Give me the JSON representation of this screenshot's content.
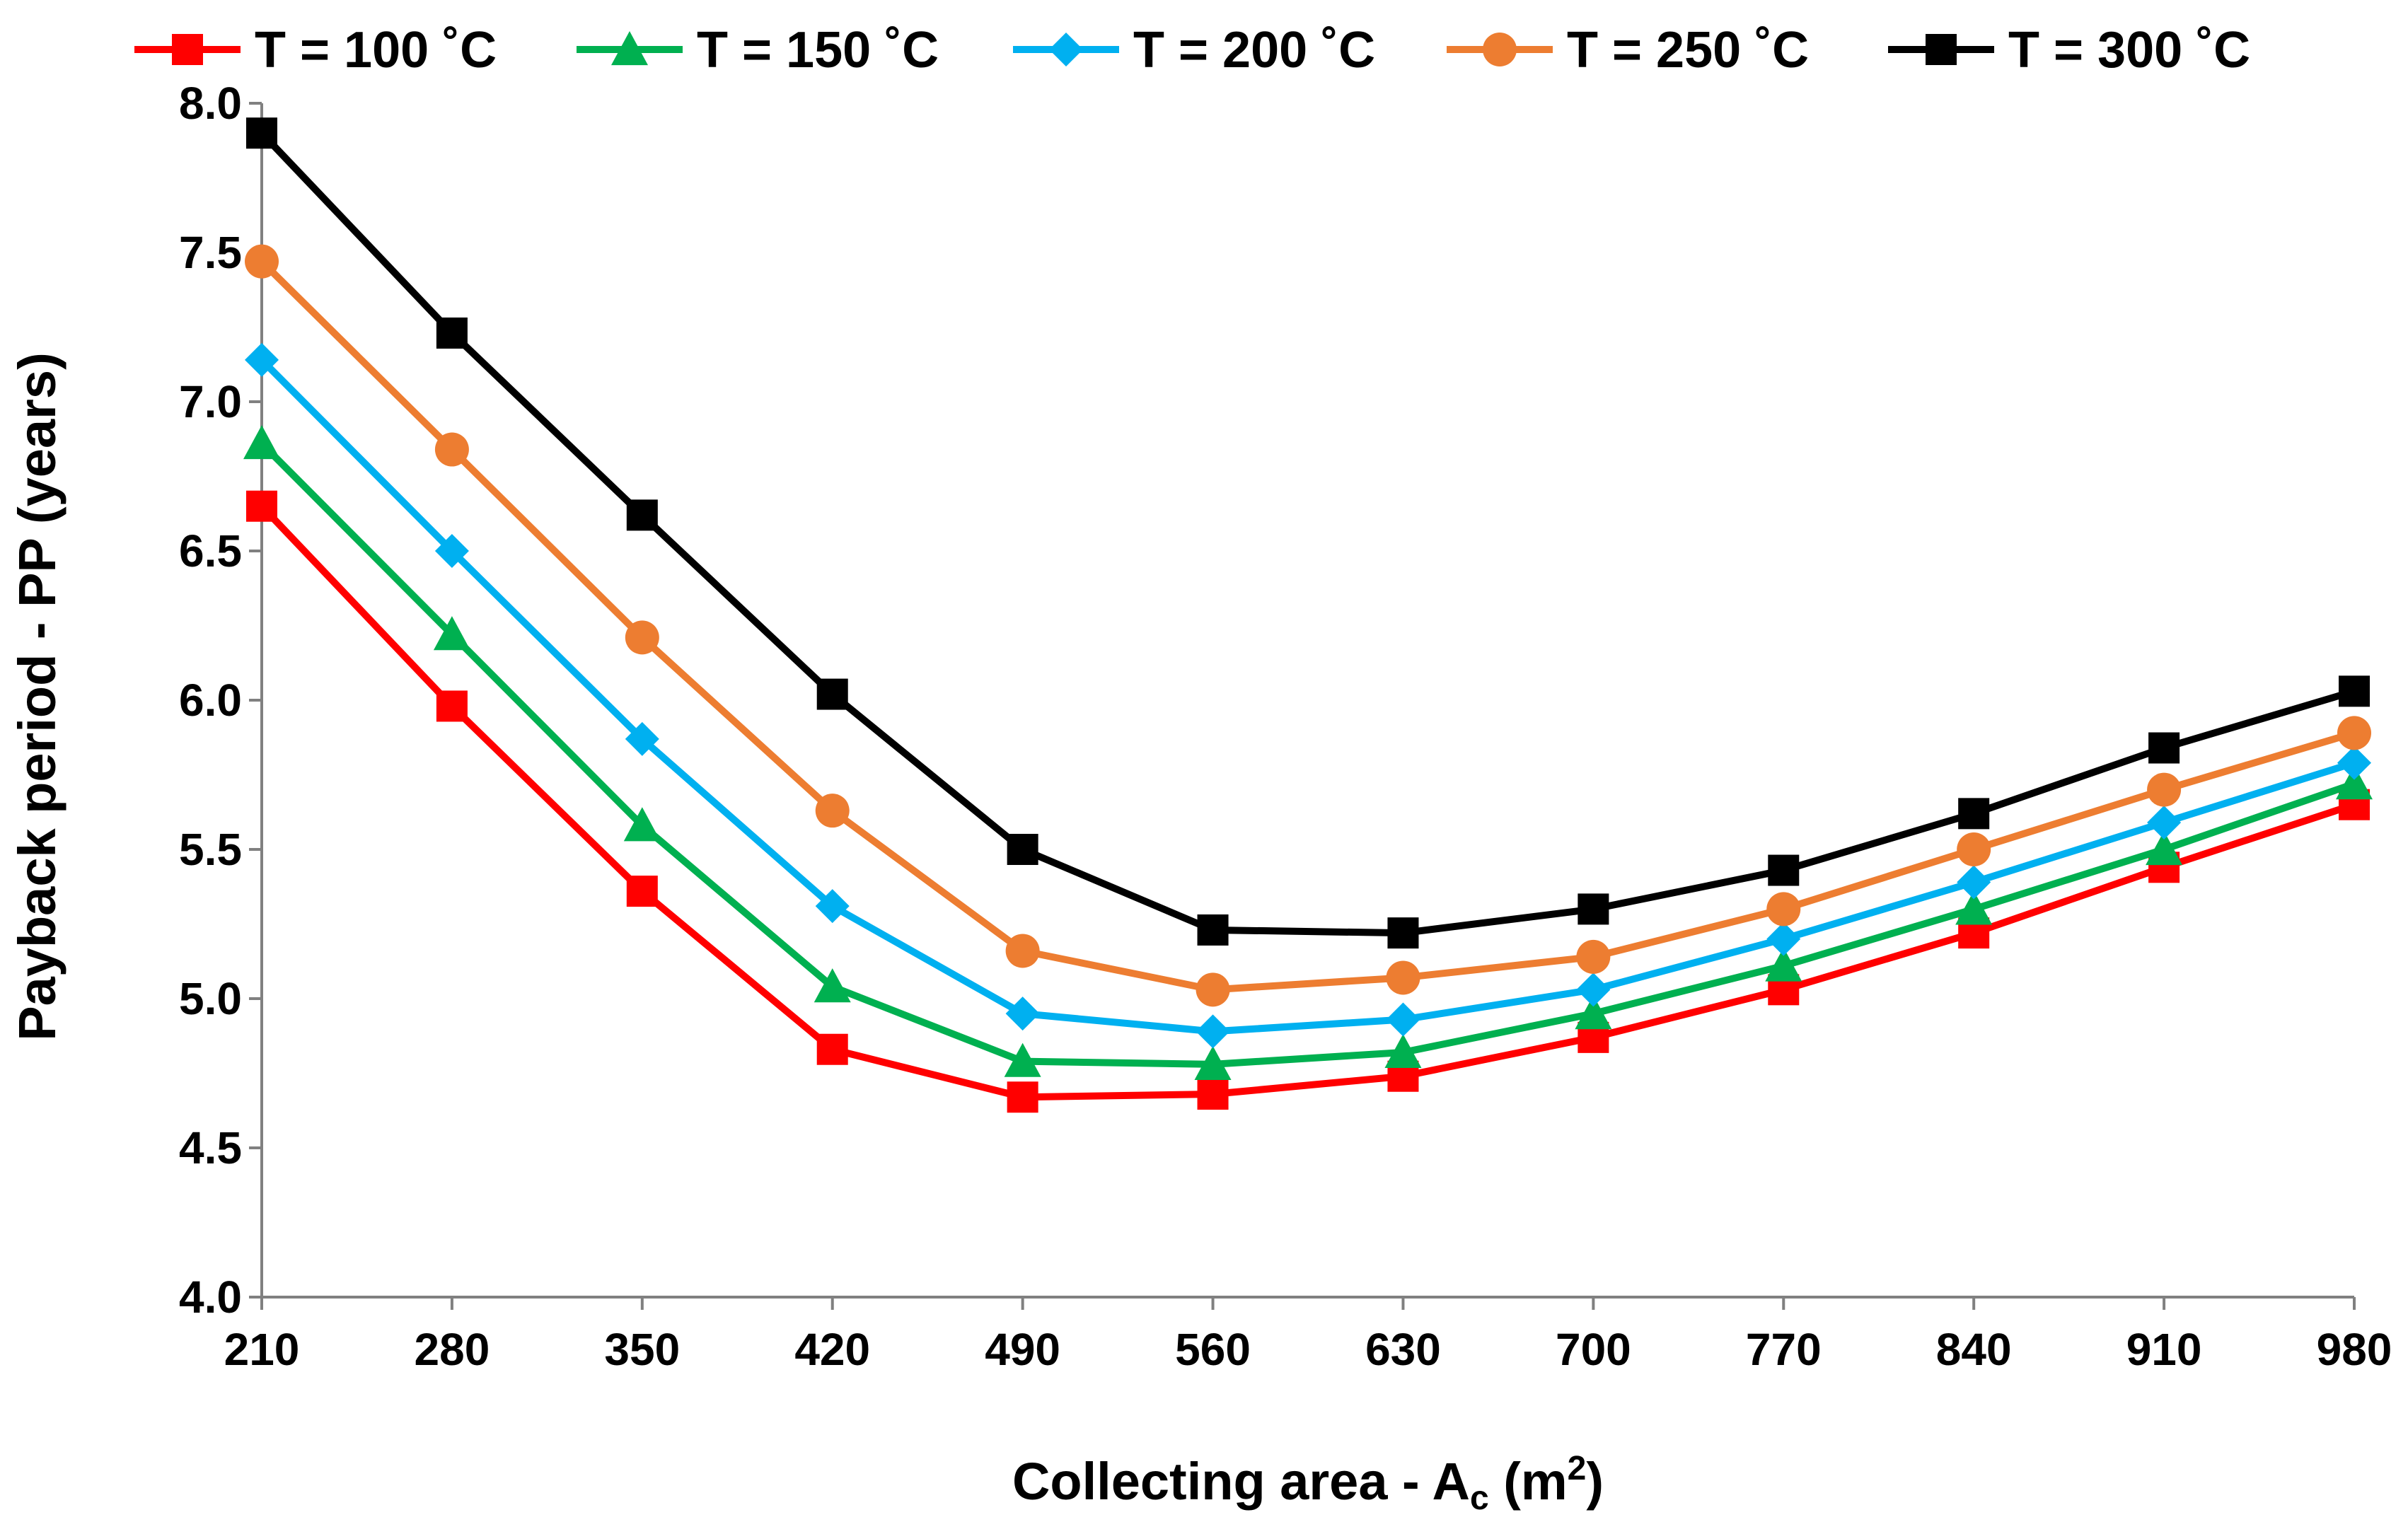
{
  "chart_data": {
    "type": "line",
    "title": "",
    "xlabel": {
      "main": "Collecting area - A",
      "sub": "c",
      "unit_open": " (m",
      "sup": "2",
      "unit_close": ")"
    },
    "ylabel": "Payback period - PP (years)",
    "categories": [
      "210",
      "280",
      "350",
      "420",
      "490",
      "560",
      "630",
      "700",
      "770",
      "840",
      "910",
      "980"
    ],
    "ylim": [
      4.0,
      8.0
    ],
    "yticks": [
      "4.0",
      "4.5",
      "5.0",
      "5.5",
      "6.0",
      "6.5",
      "7.0",
      "7.5",
      "8.0"
    ],
    "legend_position": "top",
    "grid": false,
    "series": [
      {
        "name": "T = 100 ˚C",
        "color": "#ff0000",
        "marker": "square",
        "values": [
          6.65,
          5.98,
          5.36,
          4.83,
          4.67,
          4.68,
          4.74,
          4.87,
          5.03,
          5.22,
          5.44,
          5.65
        ]
      },
      {
        "name": "T = 150 ˚C",
        "color": "#00b050",
        "marker": "triangle",
        "values": [
          6.86,
          6.22,
          5.58,
          5.04,
          4.79,
          4.78,
          4.82,
          4.95,
          5.11,
          5.3,
          5.5,
          5.72
        ]
      },
      {
        "name": "T = 200 ˚C",
        "color": "#00b0f0",
        "marker": "diamond",
        "values": [
          7.14,
          6.5,
          5.87,
          5.31,
          4.95,
          4.89,
          4.93,
          5.03,
          5.2,
          5.39,
          5.59,
          5.79
        ]
      },
      {
        "name": "T = 250 ˚C",
        "color": "#ed7d31",
        "marker": "circle",
        "values": [
          7.47,
          6.84,
          6.21,
          5.63,
          5.16,
          5.03,
          5.07,
          5.14,
          5.3,
          5.5,
          5.7,
          5.89
        ]
      },
      {
        "name": "T = 300 ˚C",
        "color": "#000000",
        "marker": "square",
        "values": [
          7.9,
          7.23,
          6.62,
          6.02,
          5.5,
          5.23,
          5.22,
          5.3,
          5.43,
          5.62,
          5.84,
          6.03
        ]
      }
    ]
  }
}
